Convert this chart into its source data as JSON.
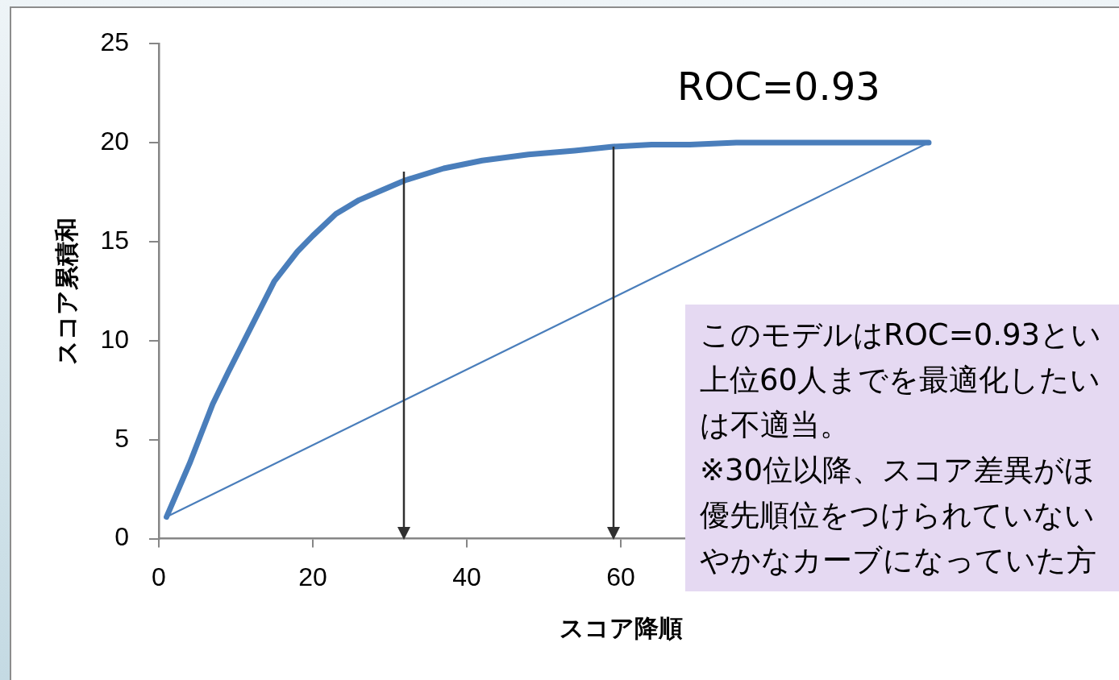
{
  "chart_data": {
    "type": "line",
    "xlabel": "スコア降順",
    "ylabel": "スコア累積和",
    "xlim": [
      0,
      120
    ],
    "xticks": [
      0,
      20,
      40,
      60
    ],
    "ylim": [
      0,
      25
    ],
    "yticks": [
      0,
      5,
      10,
      15,
      20,
      25
    ],
    "grid": false,
    "legend": false,
    "marker": "none",
    "line_style": "solid",
    "series": [
      {
        "color": "#4a7ebb",
        "x": [
          1,
          4,
          7,
          9,
          12,
          15,
          18,
          20,
          23,
          26,
          29,
          32,
          37,
          42,
          48,
          54,
          59,
          64,
          69,
          75,
          80,
          90,
          100
        ],
        "values": [
          1.1,
          3.8,
          6.8,
          8.4,
          10.7,
          13.0,
          14.5,
          15.3,
          16.4,
          17.1,
          17.6,
          18.1,
          18.7,
          19.1,
          19.4,
          19.6,
          19.8,
          19.9,
          19.9,
          20,
          20,
          20,
          20
        ]
      },
      {
        "color": "#4a7ebb",
        "x": [
          1,
          100
        ],
        "values": [
          1.1,
          20
        ]
      }
    ],
    "annotations": [
      "ROC=0.93",
      "このモデルはROC=0.93とい上位60人までを最適化したいは不適当。",
      "※30位以降、スコア差異がほ優先順位をつけられていないやかなカーブになっていた方"
    ]
  }
}
